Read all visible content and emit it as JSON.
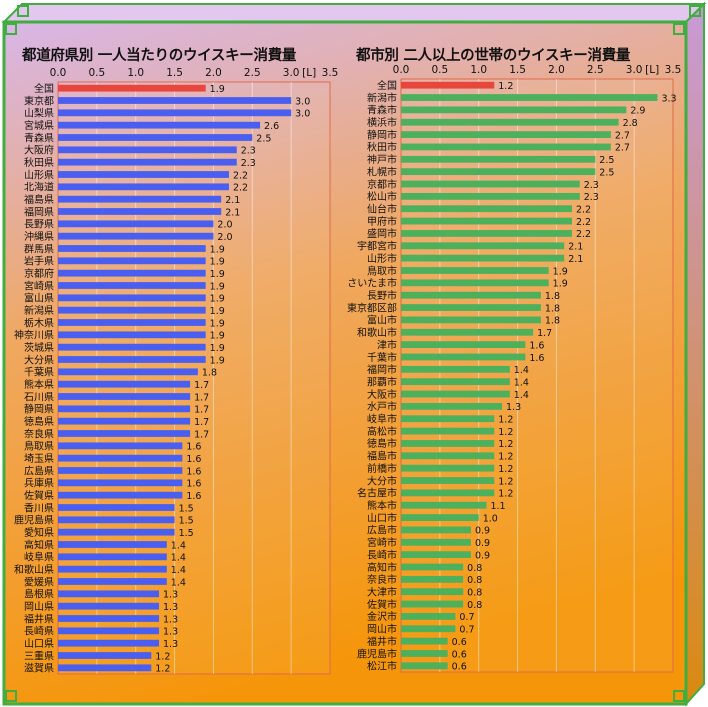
{
  "colors": {
    "highlight_bar": "#e8453c",
    "left_series": "#4a5ef0",
    "right_series": "#4cb05c",
    "frame_green": "#3fae3f",
    "plot_border": "#e06a4a"
  },
  "chart_data": [
    {
      "type": "bar",
      "orientation": "horizontal",
      "title": "都道府県別 一人当たりのウイスキー消費量",
      "unit": "[L]",
      "xlim": [
        0,
        3.5
      ],
      "xticks": [
        "0.0",
        "0.5",
        "1.0",
        "1.5",
        "2.0",
        "2.5",
        "3.0",
        "3.5"
      ],
      "grid": true,
      "categories": [
        "全国",
        "東京都",
        "山梨県",
        "宮城県",
        "青森県",
        "大阪府",
        "秋田県",
        "山形県",
        "北海道",
        "福島県",
        "福岡県",
        "長野県",
        "沖縄県",
        "群馬県",
        "岩手県",
        "京都府",
        "宮崎県",
        "富山県",
        "新潟県",
        "栃木県",
        "神奈川県",
        "茨城県",
        "大分県",
        "千葉県",
        "熊本県",
        "石川県",
        "静岡県",
        "徳島県",
        "奈良県",
        "鳥取県",
        "埼玉県",
        "広島県",
        "兵庫県",
        "佐賀県",
        "香川県",
        "鹿児島県",
        "愛知県",
        "高知県",
        "岐阜県",
        "和歌山県",
        "愛媛県",
        "島根県",
        "岡山県",
        "福井県",
        "長崎県",
        "山口県",
        "三重県",
        "滋賀県"
      ],
      "values": [
        1.9,
        3.0,
        3.0,
        2.6,
        2.5,
        2.3,
        2.3,
        2.2,
        2.2,
        2.1,
        2.1,
        2.0,
        2.0,
        1.9,
        1.9,
        1.9,
        1.9,
        1.9,
        1.9,
        1.9,
        1.9,
        1.9,
        1.9,
        1.8,
        1.7,
        1.7,
        1.7,
        1.7,
        1.7,
        1.6,
        1.6,
        1.6,
        1.6,
        1.6,
        1.5,
        1.5,
        1.5,
        1.4,
        1.4,
        1.4,
        1.4,
        1.3,
        1.3,
        1.3,
        1.3,
        1.3,
        1.2,
        1.2
      ],
      "value_labels": [
        "1.9",
        "3.0",
        "3.0",
        "2.6",
        "2.5",
        "2.3",
        "2.3",
        "2.2",
        "2.2",
        "2.1",
        "2.1",
        "2.0",
        "2.0",
        "1.9",
        "1.9",
        "1.9",
        "1.9",
        "1.9",
        "1.9",
        "1.9",
        "1.9",
        "1.9",
        "1.9",
        "1.8",
        "1.7",
        "1.7",
        "1.7",
        "1.7",
        "1.7",
        "1.6",
        "1.6",
        "1.6",
        "1.6",
        "1.6",
        "1.5",
        "1.5",
        "1.5",
        "1.4",
        "1.4",
        "1.4",
        "1.4",
        "1.3",
        "1.3",
        "1.3",
        "1.3",
        "1.3",
        "1.2",
        "1.2"
      ],
      "highlight": "全国"
    },
    {
      "type": "bar",
      "orientation": "horizontal",
      "title": "都市別 二人以上の世帯のウイスキー消費量",
      "unit": "[L]",
      "xlim": [
        0,
        3.5
      ],
      "xticks": [
        "0.0",
        "0.5",
        "1.0",
        "1.5",
        "2.0",
        "2.5",
        "3.0",
        "3.5"
      ],
      "grid": true,
      "categories": [
        "全国",
        "新潟市",
        "青森市",
        "横浜市",
        "静岡市",
        "秋田市",
        "神戸市",
        "札幌市",
        "京都市",
        "松山市",
        "仙台市",
        "甲府市",
        "盛岡市",
        "宇都宮市",
        "山形市",
        "鳥取市",
        "さいたま市",
        "長野市",
        "東京都区部",
        "富山市",
        "和歌山市",
        "津市",
        "千葉市",
        "福岡市",
        "那覇市",
        "大阪市",
        "水戸市",
        "岐阜市",
        "高松市",
        "徳島市",
        "福島市",
        "前橋市",
        "大分市",
        "名古屋市",
        "熊本市",
        "山口市",
        "広島市",
        "宮崎市",
        "長崎市",
        "高知市",
        "奈良市",
        "大津市",
        "佐賀市",
        "金沢市",
        "岡山市",
        "福井市",
        "鹿児島市",
        "松江市"
      ],
      "values": [
        1.2,
        3.3,
        2.9,
        2.8,
        2.7,
        2.7,
        2.5,
        2.5,
        2.3,
        2.3,
        2.2,
        2.2,
        2.2,
        2.1,
        2.1,
        1.9,
        1.9,
        1.8,
        1.8,
        1.8,
        1.7,
        1.6,
        1.6,
        1.4,
        1.4,
        1.4,
        1.3,
        1.2,
        1.2,
        1.2,
        1.2,
        1.2,
        1.2,
        1.2,
        1.1,
        1.0,
        0.9,
        0.9,
        0.9,
        0.8,
        0.8,
        0.8,
        0.8,
        0.7,
        0.7,
        0.6,
        0.6,
        0.6
      ],
      "value_labels": [
        "1.2",
        "3.3",
        "2.9",
        "2.8",
        "2.7",
        "2.7",
        "2.5",
        "2.5",
        "2.3",
        "2.3",
        "2.2",
        "2.2",
        "2.2",
        "2.1",
        "2.1",
        "1.9",
        "1.9",
        "1.8",
        "1.8",
        "1.8",
        "1.7",
        "1.6",
        "1.6",
        "1.4",
        "1.4",
        "1.4",
        "1.3",
        "1.2",
        "1.2",
        "1.2",
        "1.2",
        "1.2",
        "1.2",
        "1.2",
        "1.1",
        "1.0",
        "0.9",
        "0.9",
        "0.9",
        "0.8",
        "0.8",
        "0.8",
        "0.8",
        "0.7",
        "0.7",
        "0.6",
        "0.6",
        "0.6"
      ],
      "highlight": "全国"
    }
  ]
}
